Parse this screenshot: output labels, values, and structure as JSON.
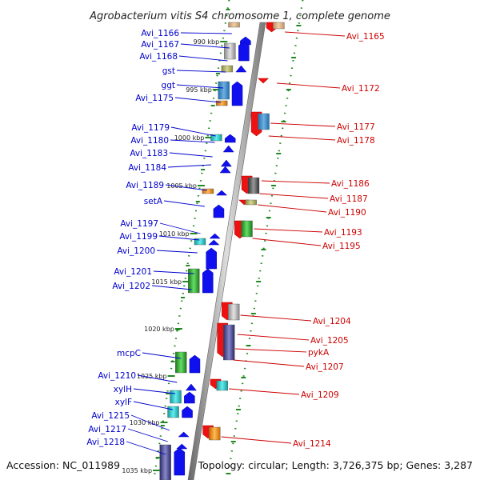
{
  "title": "Agrobacterium vitis S4 chromosome 1, complete genome",
  "footer": {
    "accession": "Accession: NC_011989",
    "topology": "Topology: circular; Length: 3,726,375 bp; Genes: 3,287"
  },
  "colors": {
    "forward": "#1010ee",
    "reverse": "#ee1111",
    "backbone": "#999999",
    "ruler": "#228822",
    "label_forward": "#0000cc",
    "label_reverse": "#cc0000"
  },
  "scale": [
    {
      "label": "990 kbp"
    },
    {
      "label": "995 kbp"
    },
    {
      "label": "1000 kbp"
    },
    {
      "label": "1005 kbp"
    },
    {
      "label": "1010 kbp"
    },
    {
      "label": "1015 kbp"
    },
    {
      "label": "1020 kbp"
    },
    {
      "label": "1025 kbp"
    },
    {
      "label": "1030 kbp"
    },
    {
      "label": "1035 kbp"
    }
  ],
  "left_labels": [
    {
      "name": "Avi_1166"
    },
    {
      "name": "Avi_1167"
    },
    {
      "name": "Avi_1168"
    },
    {
      "name": "gst"
    },
    {
      "name": "ggt"
    },
    {
      "name": "Avi_1175"
    },
    {
      "name": "Avi_1179"
    },
    {
      "name": "Avi_1180"
    },
    {
      "name": "Avi_1183"
    },
    {
      "name": "Avi_1184"
    },
    {
      "name": "Avi_1189"
    },
    {
      "name": "setA"
    },
    {
      "name": "Avi_1197"
    },
    {
      "name": "Avi_1199"
    },
    {
      "name": "Avi_1200"
    },
    {
      "name": "Avi_1201"
    },
    {
      "name": "Avi_1202"
    },
    {
      "name": "mcpC"
    },
    {
      "name": "Avi_1210"
    },
    {
      "name": "xylH"
    },
    {
      "name": "xylF"
    },
    {
      "name": "Avi_1215"
    },
    {
      "name": "Avi_1217"
    },
    {
      "name": "Avi_1218"
    }
  ],
  "right_labels": [
    {
      "name": "Avi_1165"
    },
    {
      "name": "Avi_1172"
    },
    {
      "name": "Avi_1177"
    },
    {
      "name": "Avi_1178"
    },
    {
      "name": "Avi_1186"
    },
    {
      "name": "Avi_1187"
    },
    {
      "name": "Avi_1190"
    },
    {
      "name": "Avi_1193"
    },
    {
      "name": "Avi_1195"
    },
    {
      "name": "Avi_1204"
    },
    {
      "name": "Avi_1205"
    },
    {
      "name": "pykA"
    },
    {
      "name": "Avi_1207"
    },
    {
      "name": "Avi_1209"
    },
    {
      "name": "Avi_1214"
    }
  ]
}
